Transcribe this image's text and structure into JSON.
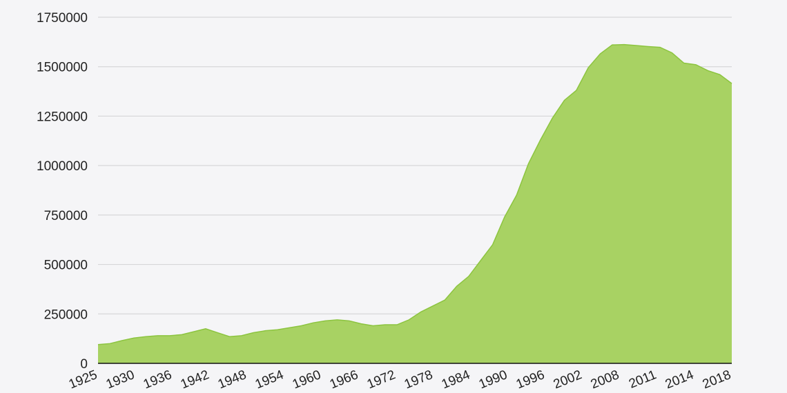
{
  "colors": {
    "area_fill": "#a8d263",
    "area_stroke": "#8cc43f",
    "background": "#f5f5f7"
  },
  "chart_data": {
    "type": "area",
    "title": "",
    "xlabel": "",
    "ylabel": "",
    "ylim": [
      0,
      1750000
    ],
    "grid": true,
    "y_ticks": [
      0,
      250000,
      500000,
      750000,
      1000000,
      1250000,
      1500000,
      1750000
    ],
    "x_tick_labels": [
      "1925",
      "1930",
      "1936",
      "1942",
      "1948",
      "1954",
      "1960",
      "1966",
      "1972",
      "1978",
      "1984",
      "1990",
      "1996",
      "2002",
      "2008",
      "2011",
      "2014",
      "2018"
    ],
    "series": [
      {
        "values": [
          95000,
          100000,
          115000,
          128000,
          135000,
          140000,
          140000,
          145000,
          160000,
          175000,
          155000,
          135000,
          140000,
          155000,
          165000,
          170000,
          180000,
          190000,
          205000,
          215000,
          220000,
          215000,
          200000,
          190000,
          195000,
          195000,
          220000,
          260000,
          290000,
          320000,
          390000,
          440000,
          520000,
          600000,
          740000,
          850000,
          1010000,
          1130000,
          1240000,
          1330000,
          1380000,
          1495000,
          1565000,
          1610000,
          1612000,
          1607000,
          1602000,
          1598000,
          1570000,
          1518000,
          1510000,
          1480000,
          1460000,
          1415000
        ]
      }
    ]
  }
}
